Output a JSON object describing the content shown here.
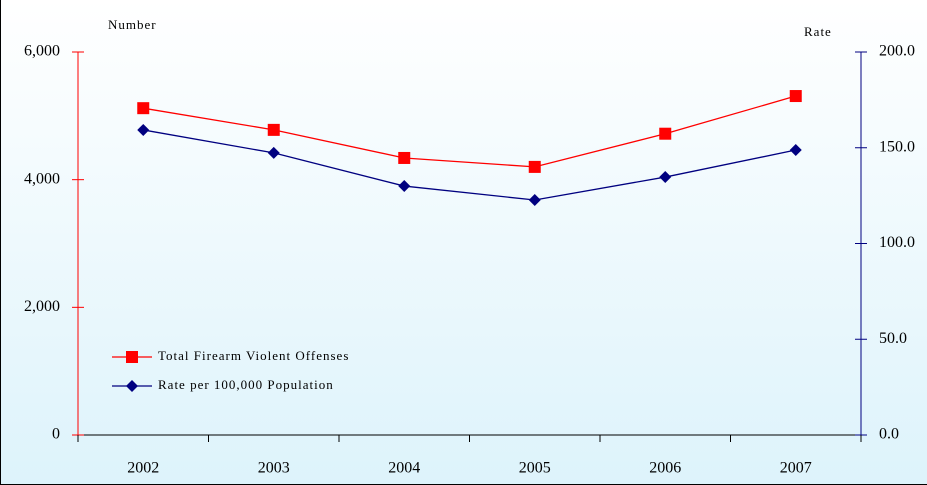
{
  "chart_data": {
    "type": "line",
    "y_label": "Number",
    "y2_label": "Rate",
    "categories": [
      "2002",
      "2003",
      "2004",
      "2005",
      "2006",
      "2007"
    ],
    "series": [
      {
        "name": "Total Firearm Violent Offenses",
        "color": "#ff0000",
        "marker": "square",
        "values": [
          5120,
          4780,
          4340,
          4200,
          4720,
          5310
        ]
      },
      {
        "name": "Rate per 100,000 Population",
        "color": "#000080",
        "marker": "diamond",
        "axis": "y2",
        "values": [
          159.3,
          147.3,
          130.0,
          122.7,
          134.7,
          148.8
        ]
      }
    ],
    "ylim": [
      0,
      6000
    ],
    "yticks": [
      0,
      {
        "value": 2000,
        "label": "2,000"
      },
      {
        "value": 4000,
        "label": "4,000"
      },
      {
        "value": 6000,
        "label": "6,000"
      }
    ],
    "y2lim": [
      0,
      200
    ],
    "y2ticks": [
      {
        "value": 0,
        "label": "0.0"
      },
      {
        "value": 50,
        "label": "50.0"
      },
      {
        "value": 100,
        "label": "100.0"
      },
      {
        "value": 150,
        "label": "150.0"
      },
      {
        "value": 200,
        "label": "200.0"
      }
    ],
    "y_axis_color": "#ff0000",
    "y2_axis_color": "#000080",
    "legend": "lower left"
  }
}
